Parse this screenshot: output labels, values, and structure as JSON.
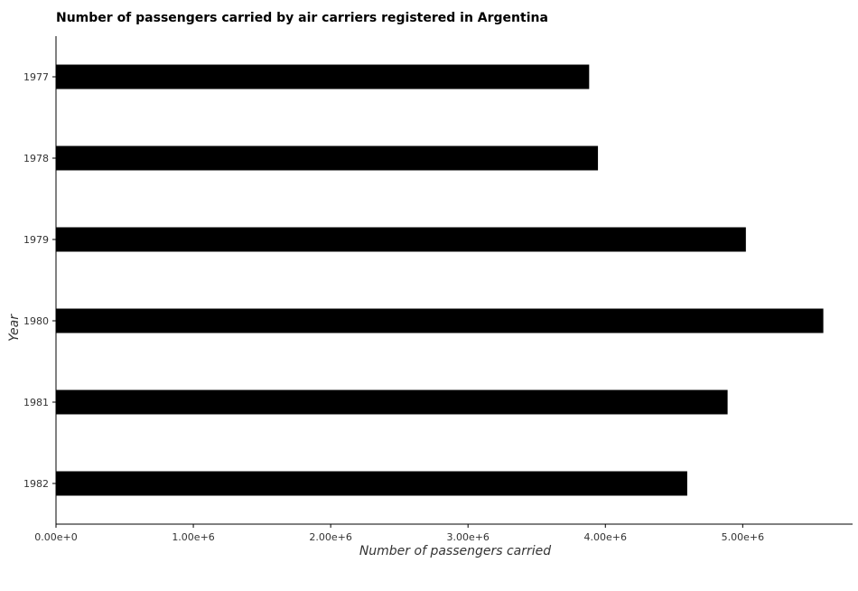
{
  "chart_data": {
    "type": "bar",
    "orientation": "horizontal",
    "title": "Number of passengers carried by air carriers registered in Argentina",
    "xlabel": "Number of passengers carried",
    "ylabel": "Year",
    "categories": [
      "1977",
      "1978",
      "1979",
      "1980",
      "1981",
      "1982"
    ],
    "values": [
      3882000,
      3946000,
      5023000,
      5587000,
      4890000,
      4596000
    ],
    "xlim": [
      0,
      5800000
    ],
    "xticks": [
      0,
      1000000,
      2000000,
      3000000,
      4000000,
      5000000
    ],
    "xtick_labels": [
      "0.00e+0",
      "1.00e+6",
      "2.00e+6",
      "3.00e+6",
      "4.00e+6",
      "5.00e+6"
    ],
    "grid": false,
    "legend": "none",
    "bar_color": "#000000"
  }
}
